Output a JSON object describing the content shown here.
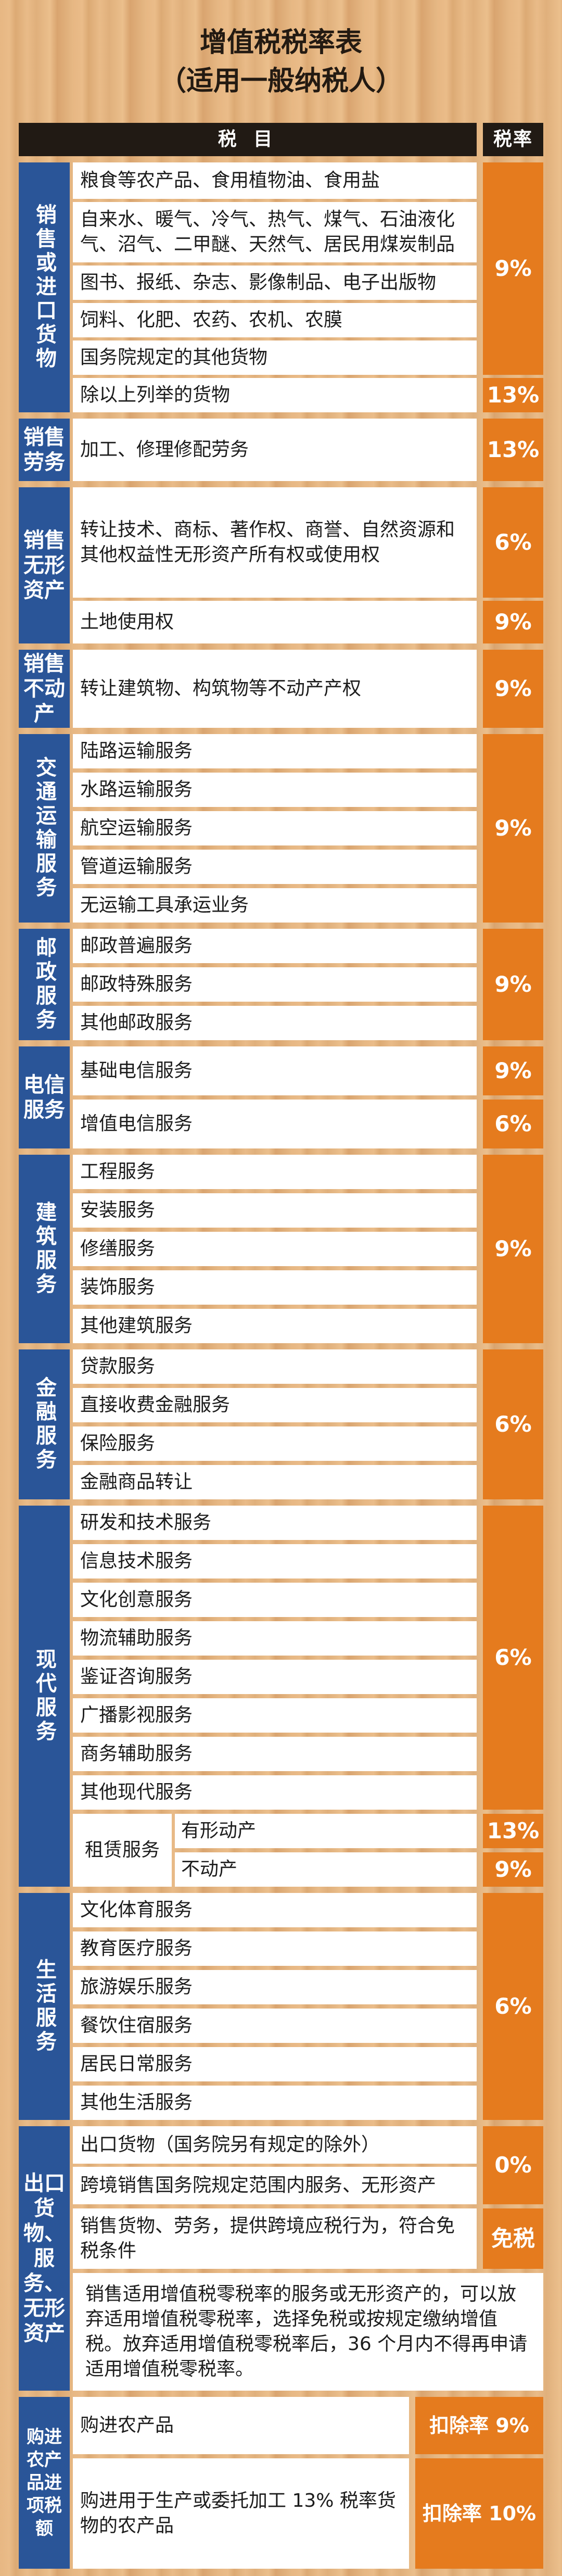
{
  "title_line1": "增值税税率表",
  "title_line2": "（适用一般纳税人）",
  "header": {
    "item": "税 目",
    "rate": "税率"
  },
  "cat_sales": "销售或进口货物",
  "sales_items": [
    "粮食等农产品、食用植物油、食用盐",
    "自来水、暖气、冷气、热气、煤气、石油液化气、沼气、二甲醚、天然气、居民用煤炭制品",
    "图书、报纸、杂志、影像制品、电子出版物",
    "饲料、化肥、农药、农机、农膜",
    "国务院规定的其他货物",
    "除以上列举的货物"
  ],
  "rate_9": "9%",
  "rate_13": "13%",
  "rate_6": "6%",
  "rate_0": "0%",
  "rate_exempt": "免税",
  "cat_labor": "销售劳务",
  "labor_item": "加工、修理修配劳务",
  "cat_intangible": "销售无形资产",
  "intangible_items": [
    "转让技术、商标、著作权、商誉、自然资源和其他权益性无形资产所有权或使用权",
    "土地使用权"
  ],
  "cat_realestate": "销售不动产",
  "realestate_item": "转让建筑物、构筑物等不动产产权",
  "cat_transport": "交通运输服务",
  "transport_items": [
    "陆路运输服务",
    "水路运输服务",
    "航空运输服务",
    "管道运输服务",
    "无运输工具承运业务"
  ],
  "cat_postal": "邮政服务",
  "postal_items": [
    "邮政普遍服务",
    "邮政特殊服务",
    "其他邮政服务"
  ],
  "cat_telecom": "电信服务",
  "telecom_items": [
    "基础电信服务",
    "增值电信服务"
  ],
  "cat_construction": "建筑服务",
  "construction_items": [
    "工程服务",
    "安装服务",
    "修缮服务",
    "装饰服务",
    "其他建筑服务"
  ],
  "cat_finance": "金融服务",
  "finance_items": [
    "贷款服务",
    "直接收费金融服务",
    "保险服务",
    "金融商品转让"
  ],
  "cat_modern": "现代服务",
  "modern_items": [
    "研发和技术服务",
    "信息技术服务",
    "文化创意服务",
    "物流辅助服务",
    "鉴证咨询服务",
    "广播影视服务",
    "商务辅助服务",
    "其他现代服务"
  ],
  "leasing": {
    "label": "租赁服务",
    "tangible": "有形动产",
    "realestate": "不动产"
  },
  "cat_life": "生活服务",
  "life_items": [
    "文化体育服务",
    "教育医疗服务",
    "旅游娱乐服务",
    "餐饮住宿服务",
    "居民日常服务",
    "其他生活服务"
  ],
  "cat_export": "出口货物、服务、无形资产",
  "export_items": [
    "出口货物（国务院另有规定的除外）",
    "跨境销售国务院规定范围内服务、无形资产",
    "销售货物、劳务，提供跨境应税行为，符合免税条件"
  ],
  "export_note": "销售适用增值税零税率的服务或无形资产的，可以放弃适用增值税零税率，选择免税或按规定缴纳增值税。放弃适用增值税零税率后，36 个月内不得再申请适用增值税零税率。",
  "cat_deduct": "购进农产品进项税额",
  "deduct_items": [
    "购进农产品",
    "购进用于生产或委托加工 13% 税率货物的农产品"
  ],
  "deduct_rates": [
    "扣除率 9%",
    "扣除率 10%"
  ]
}
